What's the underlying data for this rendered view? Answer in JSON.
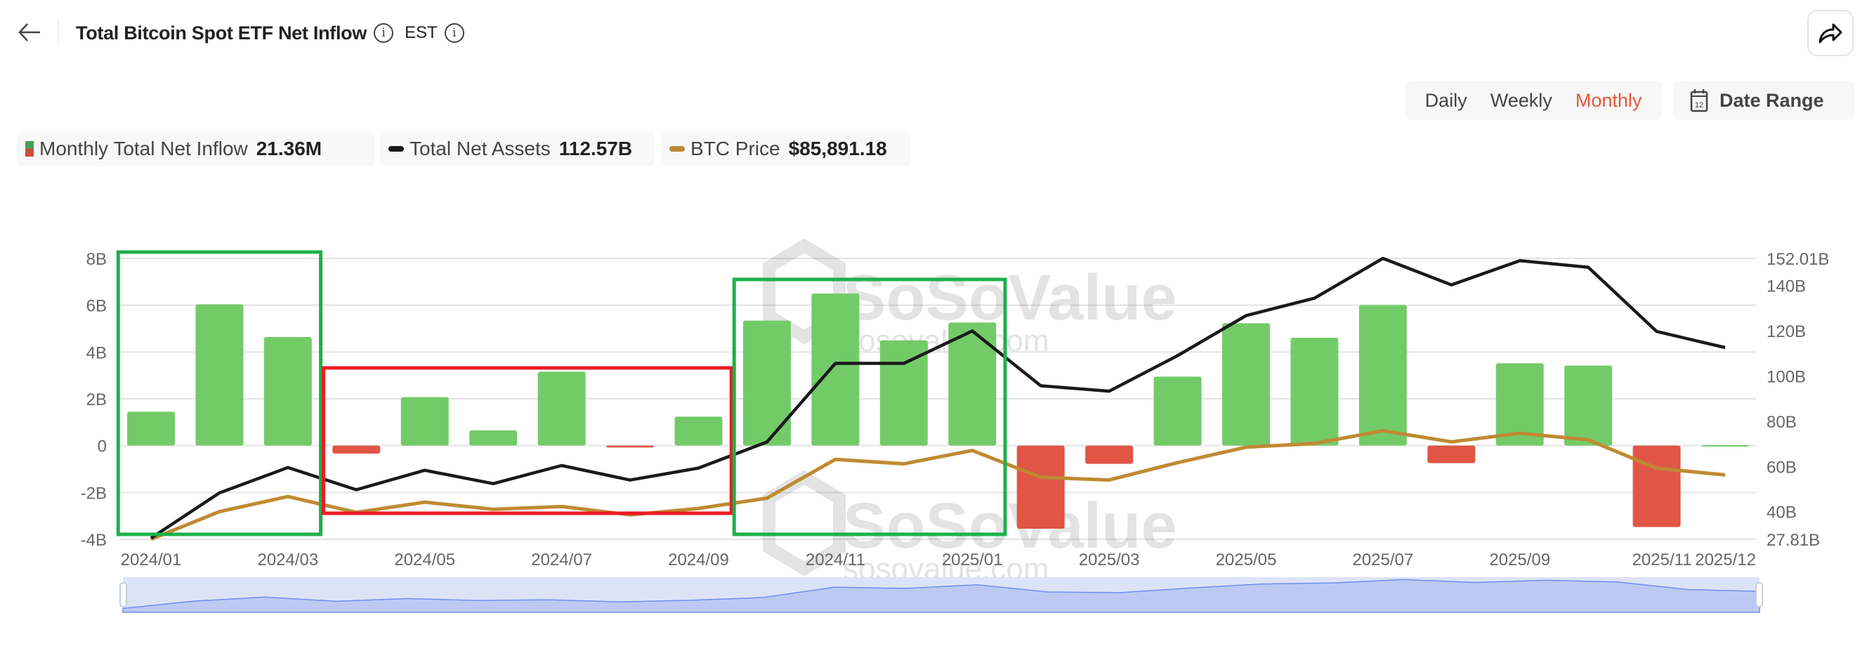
{
  "header": {
    "title": "Total Bitcoin Spot ETF Net Inflow",
    "timezone": "EST",
    "back_icon": "arrow-left-icon",
    "info_icon": "info-circle-icon",
    "share_icon": "share-arrow-icon"
  },
  "controls": {
    "periods": [
      {
        "label": "Daily",
        "active": false
      },
      {
        "label": "Weekly",
        "active": false
      },
      {
        "label": "Monthly",
        "active": true
      }
    ],
    "date_range_label": "Date Range",
    "date_range_icon": "calendar-12-icon"
  },
  "legend": [
    {
      "label": "Monthly Total Net Inflow",
      "value": "21.36M",
      "icon": "bar-green-red"
    },
    {
      "label": "Total Net Assets",
      "value": "112.57B",
      "color": "#1a1a1a"
    },
    {
      "label": "BTC Price",
      "value": "$85,891.18",
      "color": "#c08a2e"
    }
  ],
  "watermark": {
    "brand": "SoSoValue",
    "domain": "sosovalue.com"
  },
  "colors": {
    "positive": "#73cb68",
    "negative": "#e05546",
    "assets_line": "#1a1a1a",
    "price_line": "#bf8a32",
    "highlight_green": "#1fb04a",
    "highlight_red": "#ee1c24",
    "slider_fill": "#bccaf3"
  },
  "chart_data": {
    "type": "bar+line",
    "categories": [
      "2024/01",
      "2024/02",
      "2024/03",
      "2024/04",
      "2024/05",
      "2024/06",
      "2024/07",
      "2024/08",
      "2024/09",
      "2024/10",
      "2024/11",
      "2024/12",
      "2025/01",
      "2025/02",
      "2025/03",
      "2025/04",
      "2025/05",
      "2025/06",
      "2025/07",
      "2025/08",
      "2025/09",
      "2025/10",
      "2025/11",
      "2025/12"
    ],
    "x_tick_labels": [
      "2024/01",
      "2024/03",
      "2024/05",
      "2024/07",
      "2024/09",
      "2024/11",
      "2025/01",
      "2025/03",
      "2025/05",
      "2025/07",
      "2025/09",
      "2025/11",
      "2025/12"
    ],
    "series": [
      {
        "name": "Monthly Total Net Inflow",
        "type": "bar",
        "axis": "left",
        "unit": "B",
        "values": [
          1.45,
          6.04,
          4.64,
          -0.34,
          2.07,
          0.65,
          3.16,
          -0.08,
          1.24,
          5.34,
          6.5,
          4.5,
          5.26,
          -3.55,
          -0.78,
          2.95,
          5.23,
          4.61,
          6.01,
          -0.75,
          3.52,
          3.42,
          -3.48,
          0.02
        ]
      },
      {
        "name": "Total Net Assets",
        "type": "line",
        "axis": "right",
        "unit": "B",
        "values": [
          28.3,
          48.3,
          59.5,
          49.7,
          58.3,
          52.4,
          60.4,
          54.0,
          59.3,
          70.8,
          105.6,
          105.6,
          119.9,
          95.7,
          93.3,
          109.0,
          126.7,
          134.4,
          152.01,
          140.3,
          151.0,
          148.1,
          119.7,
          112.57
        ]
      },
      {
        "name": "BTC Price",
        "type": "line",
        "axis": "hidden",
        "unit": "USD",
        "values": [
          42500,
          61100,
          71300,
          60600,
          67500,
          62700,
          64600,
          59000,
          63300,
          70200,
          96400,
          93400,
          102400,
          84300,
          82500,
          94200,
          104600,
          107100,
          115700,
          108200,
          114000,
          109600,
          90400,
          85891.18
        ]
      }
    ],
    "left_axis": {
      "ticks": [
        "8B",
        "6B",
        "4B",
        "2B",
        "0",
        "-2B",
        "-4B"
      ],
      "range": [
        -4,
        8
      ]
    },
    "right_axis": {
      "ticks": [
        "152.01B",
        "140B",
        "120B",
        "100B",
        "80B",
        "60B",
        "40B",
        "27.81B"
      ],
      "range": [
        27.81,
        152.01
      ]
    },
    "grid": true,
    "highlights": [
      {
        "color": "green",
        "from": "2024/01",
        "to": "2024/03"
      },
      {
        "color": "red",
        "from": "2024/04",
        "to": "2024/09"
      },
      {
        "color": "green",
        "from": "2024/10",
        "to": "2025/01"
      }
    ]
  }
}
